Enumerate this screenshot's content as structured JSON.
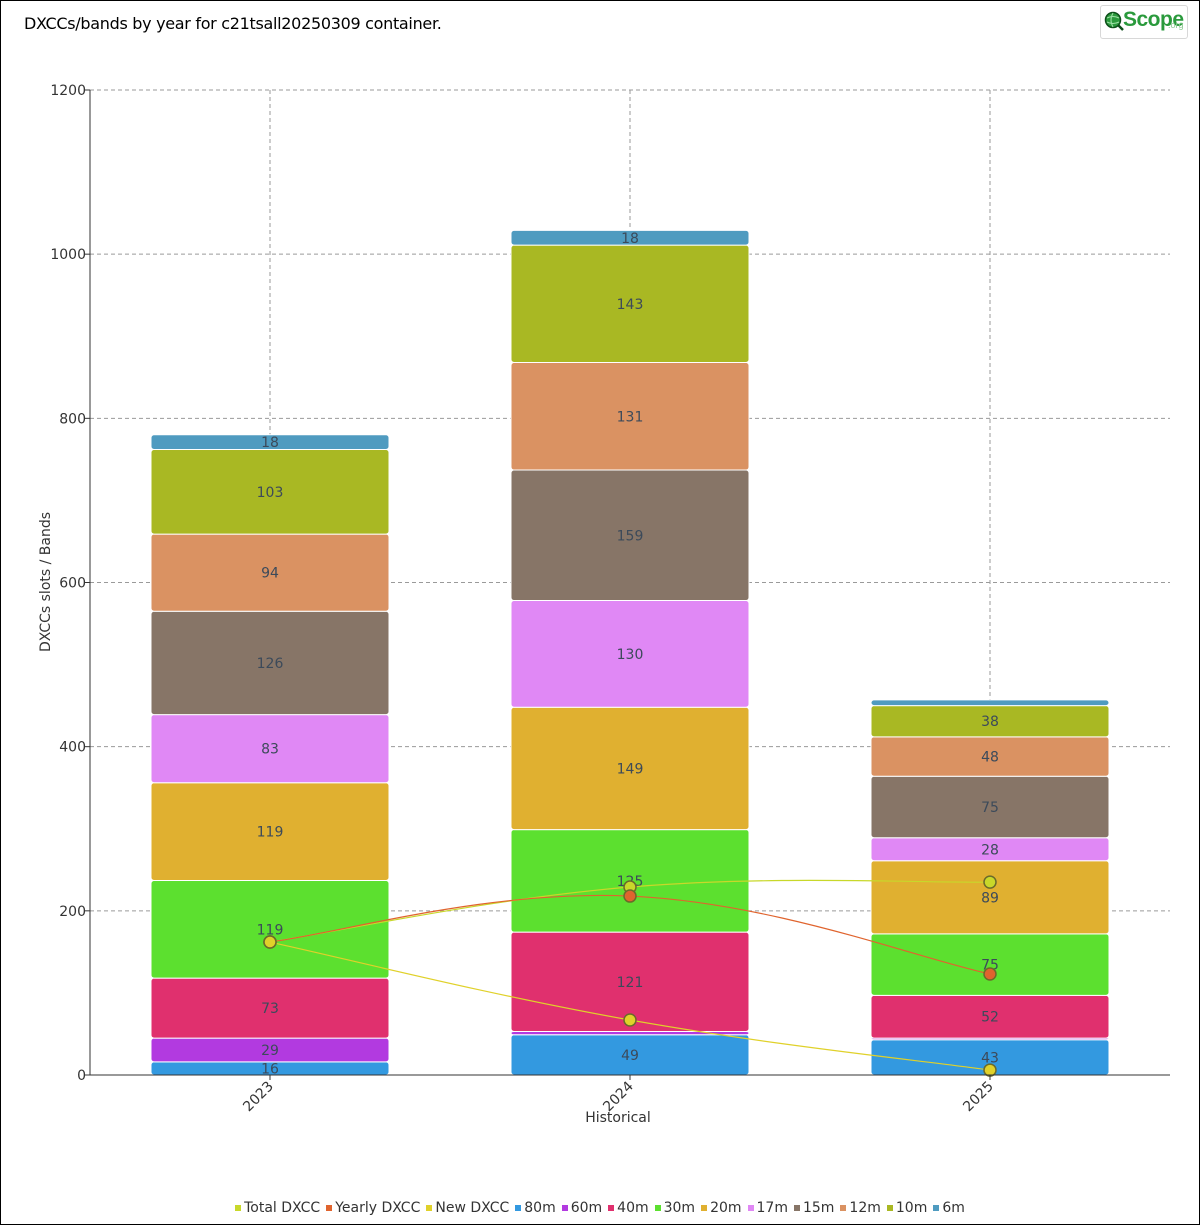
{
  "title": "DXCCs/bands by year for c21tsall20250309 container.",
  "logo": {
    "brand": "Scope",
    "tld": ".org"
  },
  "chart_data": {
    "type": "bar",
    "stacked": true,
    "categories": [
      "2023",
      "2024",
      "2025"
    ],
    "xlabel": "Historical",
    "ylabel": "DXCCs slots / Bands",
    "ylim": [
      0,
      1200
    ],
    "yticks": [
      0,
      200,
      400,
      600,
      800,
      1000,
      1200
    ],
    "grid": true,
    "legend_position": "bottom",
    "bar_series": [
      {
        "name": "80m",
        "color": "#3399e0",
        "values": [
          16,
          49,
          43
        ]
      },
      {
        "name": "60m",
        "color": "#b23ae0",
        "values": [
          29,
          4,
          2
        ]
      },
      {
        "name": "40m",
        "color": "#e0306e",
        "values": [
          73,
          121,
          52
        ]
      },
      {
        "name": "30m",
        "color": "#5ce02f",
        "values": [
          119,
          125,
          75
        ]
      },
      {
        "name": "20m",
        "color": "#e0b030",
        "values": [
          119,
          149,
          89
        ]
      },
      {
        "name": "17m",
        "color": "#e088f5",
        "values": [
          83,
          130,
          28
        ]
      },
      {
        "name": "15m",
        "color": "#877567",
        "values": [
          126,
          159,
          75
        ]
      },
      {
        "name": "12m",
        "color": "#da9262",
        "values": [
          94,
          131,
          48
        ]
      },
      {
        "name": "10m",
        "color": "#a9b823",
        "values": [
          103,
          143,
          38
        ]
      },
      {
        "name": "6m",
        "color": "#4f9bc0",
        "values": [
          18,
          18,
          7
        ]
      }
    ],
    "hidden_labels": {
      "60m": [
        false,
        true,
        true
      ],
      "6m": [
        false,
        false,
        true
      ]
    },
    "line_series": [
      {
        "name": "Total DXCC",
        "color": "#c8d82a",
        "values": [
          162,
          229,
          235
        ]
      },
      {
        "name": "Yearly DXCC",
        "color": "#e0642e",
        "values": [
          162,
          218,
          123
        ]
      },
      {
        "name": "New DXCC",
        "color": "#e0d12a",
        "values": [
          162,
          67,
          6
        ]
      }
    ],
    "legend": [
      "Total DXCC",
      "Yearly DXCC",
      "New DXCC",
      "80m",
      "60m",
      "40m",
      "30m",
      "20m",
      "17m",
      "15m",
      "12m",
      "10m",
      "6m"
    ]
  }
}
